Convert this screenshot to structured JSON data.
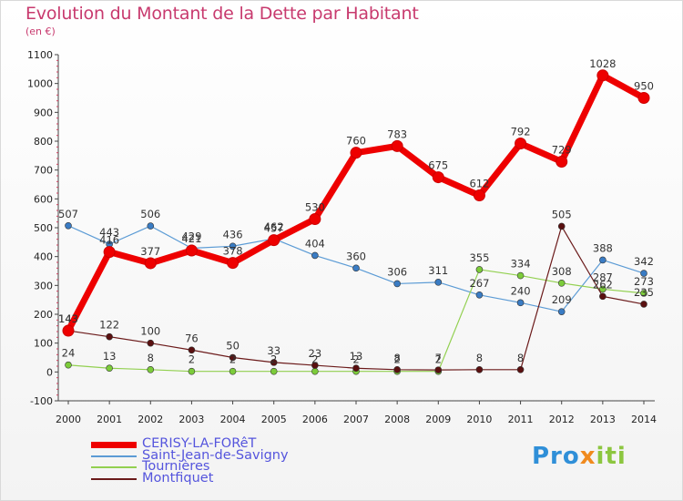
{
  "title": "Evolution du Montant de la Dette par Habitant",
  "unit": "(en €)",
  "logo": [
    "Pro",
    "x",
    "iti"
  ],
  "chart_data": {
    "type": "line",
    "x": [
      "2000",
      "2001",
      "2002",
      "2003",
      "2004",
      "2005",
      "2006",
      "2007",
      "2008",
      "2009",
      "2010",
      "2011",
      "2012",
      "2013",
      "2014"
    ],
    "ylim": [
      -100,
      1100
    ],
    "yticks": [
      -100,
      0,
      100,
      200,
      300,
      400,
      500,
      600,
      700,
      800,
      900,
      1000,
      1100
    ],
    "grid": false,
    "legend_position": "bottom-left",
    "series": [
      {
        "name": "CERISY-LA-FORêT",
        "color": "#ee0000",
        "values": [
          143,
          416,
          377,
          421,
          378,
          457,
          530,
          760,
          783,
          675,
          612,
          792,
          729,
          1028,
          950
        ]
      },
      {
        "name": "Saint-Jean-de-Savigny",
        "color": "#5b9bd5",
        "values": [
          507,
          443,
          506,
          429,
          436,
          462,
          404,
          360,
          306,
          311,
          267,
          240,
          209,
          388,
          342
        ]
      },
      {
        "name": "Tournières",
        "color": "#92d050",
        "values": [
          24,
          13,
          8,
          2,
          2,
          2,
          2,
          2,
          2,
          2,
          355,
          334,
          308,
          287,
          273
        ]
      },
      {
        "name": "Montfiquet",
        "color": "#6b1a1a",
        "values": [
          143,
          122,
          100,
          76,
          50,
          33,
          23,
          13,
          8,
          7,
          8,
          8,
          505,
          262,
          235
        ]
      }
    ]
  }
}
